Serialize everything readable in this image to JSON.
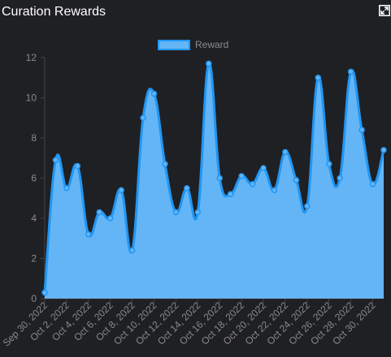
{
  "header": {
    "title": "Curation Rewards",
    "expand_icon": "expand-icon"
  },
  "colors": {
    "background": "#1f2024",
    "line": "#2196f3",
    "fill": "#64b5f6",
    "text": "#8a8a8a",
    "axis": "#444444"
  },
  "chart_data": {
    "type": "area",
    "title": "",
    "xlabel": "",
    "ylabel": "",
    "legend_position": "top-center",
    "grid": false,
    "ylim": [
      0,
      12
    ],
    "yticks": [
      0,
      2,
      4,
      6,
      8,
      10,
      12
    ],
    "xtick_labels": [
      "Sep 30, 2022",
      "Oct 2, 2022",
      "Oct 4, 2022",
      "Oct 6, 2022",
      "Oct 8, 2022",
      "Oct 10, 2022",
      "Oct 12, 2022",
      "Oct 14, 2022",
      "Oct 16, 2022",
      "Oct 18, 2022",
      "Oct 20, 2022",
      "Oct 22, 2022",
      "Oct 24, 2022",
      "Oct 26, 2022",
      "Oct 28, 2022",
      "Oct 30, 2022"
    ],
    "series": [
      {
        "name": "Reward",
        "values": [
          0.3,
          6.9,
          5.5,
          6.6,
          3.2,
          4.3,
          4.0,
          5.4,
          2.4,
          9.0,
          10.2,
          6.7,
          4.3,
          5.5,
          4.3,
          11.7,
          6.0,
          5.2,
          6.1,
          5.7,
          6.5,
          5.4,
          7.3,
          5.9,
          4.6,
          11.0,
          6.7,
          6.0,
          11.3,
          8.4,
          5.7,
          7.4
        ]
      }
    ]
  }
}
